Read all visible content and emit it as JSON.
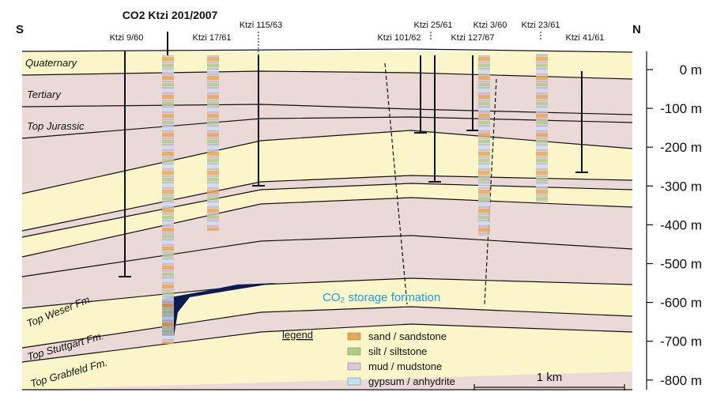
{
  "header": {
    "direction_left": "S",
    "direction_right": "N"
  },
  "wells": [
    {
      "label": "CO2 Ktzi 201/2007"
    },
    {
      "label": "Ktzi 9/60"
    },
    {
      "label": "Ktzi 17/61"
    },
    {
      "label": "Ktzi 115/63"
    },
    {
      "label": "Ktzi 101/62"
    },
    {
      "label": "Ktzi 25/61"
    },
    {
      "label": "Ktzi 3/60"
    },
    {
      "label": "Ktzi 127/67"
    },
    {
      "label": "Ktzi 23/61"
    },
    {
      "label": "Ktzi 41/61"
    }
  ],
  "layers": [
    "Quaternary",
    "Tertiary",
    "Top Jurassic",
    "Top Weser Fm.",
    "Top Stuttgart Fm.",
    "Top Grabfeld Fm."
  ],
  "depth_labels": [
    "0 m",
    "-100 m",
    "-200 m",
    "-300 m",
    "-400 m",
    "-500 m",
    "-600 m",
    "-700 m",
    "-800 m"
  ],
  "annotation": "CO₂ storage formation",
  "legend": {
    "title": "legend",
    "items": [
      "sand / sandstone",
      "silt / siltstone",
      "mud / mudstone",
      "gypsum / anhydrite"
    ]
  },
  "scale": "1 km"
}
